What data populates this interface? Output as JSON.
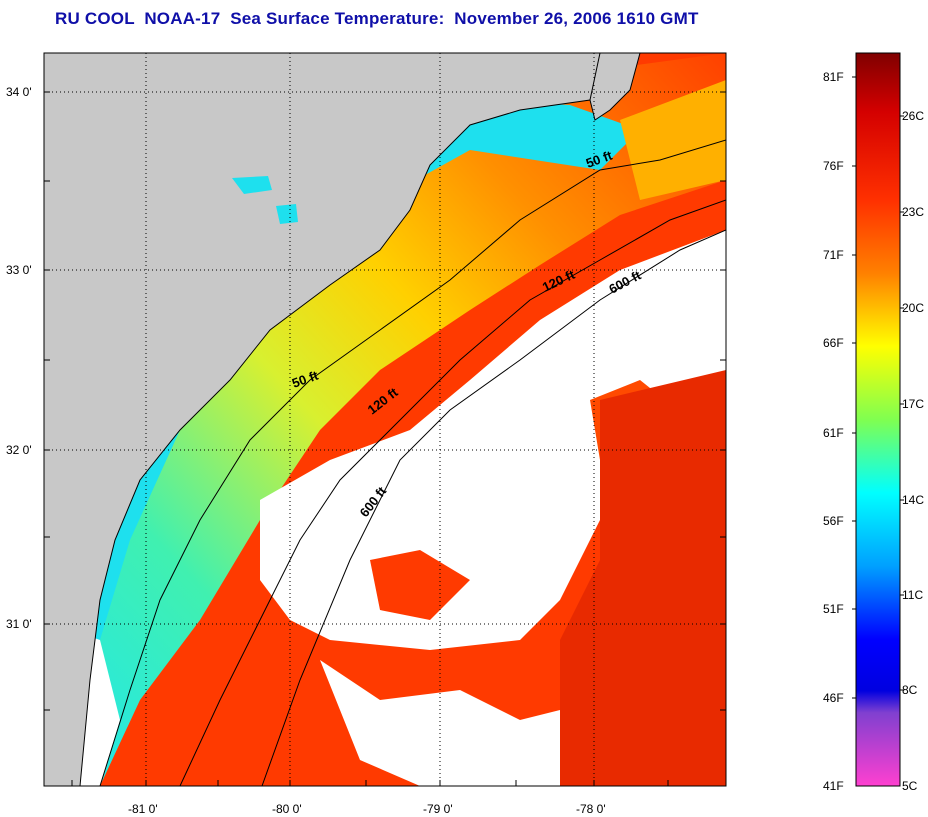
{
  "title": "RU COOL  NOAA-17  Sea Surface Temperature:  November 26, 2006 1610 GMT",
  "map": {
    "lat_labels": [
      "34 0'",
      "33 0'",
      "32 0'",
      "31 0'"
    ],
    "lon_labels": [
      "-81 0'",
      "-80 0'",
      "-79 0'",
      "-78 0'"
    ],
    "contours": [
      "50 ft",
      "120 ft",
      "600 ft",
      "50 ft",
      "120 ft",
      "600 ft"
    ]
  },
  "colorbar": {
    "fahrenheit": [
      "81F",
      "76F",
      "71F",
      "66F",
      "61F",
      "56F",
      "51F",
      "46F",
      "41F"
    ],
    "celsius": [
      "26C",
      "23C",
      "20C",
      "17C",
      "14C",
      "11C",
      "8C",
      "5C"
    ]
  },
  "colors": {
    "title": "#0f0fa8",
    "land": "#c8c8c8",
    "cloud": "#ffffff",
    "nearshore": "#1ee0ee",
    "warm": "#ff3a00"
  }
}
